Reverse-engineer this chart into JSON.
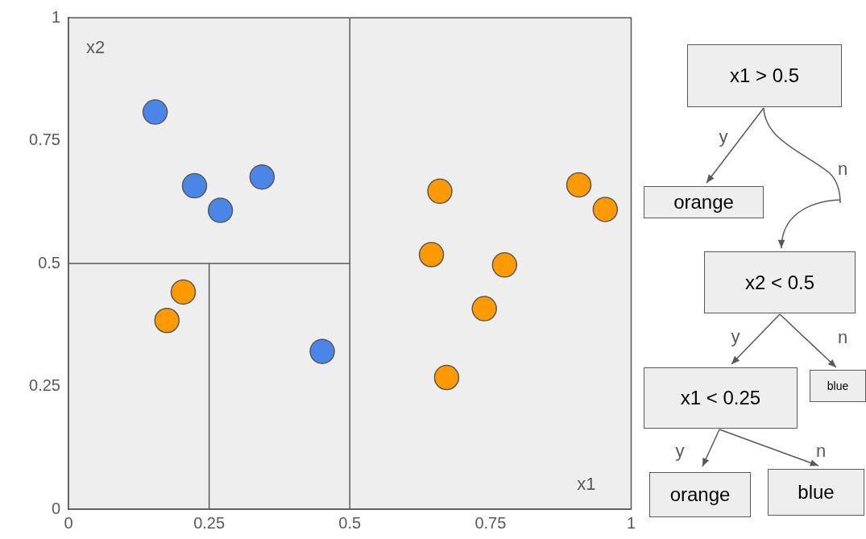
{
  "chart_data": {
    "type": "scatter",
    "xlabel": "x1",
    "ylabel": "x2",
    "xlim": [
      0,
      1
    ],
    "xticks": [
      0,
      0.25,
      0.5,
      0.75,
      1
    ],
    "ylim": [
      0,
      1
    ],
    "yticks": [
      0,
      0.25,
      0.5,
      0.75,
      1
    ],
    "grid": false,
    "legend": false,
    "marker": "circle",
    "series": [
      {
        "color": "#4a86e8",
        "x": [
          0.154,
          0.224,
          0.27,
          0.344,
          0.451
        ],
        "values": [
          0.808,
          0.658,
          0.608,
          0.676,
          0.321
        ]
      },
      {
        "color": "#ff9900",
        "x": [
          0.204,
          0.175,
          0.66,
          0.645,
          0.775,
          0.739,
          0.672,
          0.907,
          0.954
        ],
        "values": [
          0.442,
          0.384,
          0.647,
          0.518,
          0.497,
          0.408,
          0.268,
          0.66,
          0.61
        ]
      },
      {
        "type": "line",
        "marker": "none",
        "color": "#595959",
        "x": [
          0.5,
          0.5
        ],
        "values": [
          0,
          1
        ]
      },
      {
        "type": "line",
        "marker": "none",
        "color": "#595959",
        "x": [
          0,
          0.5
        ],
        "values": [
          0.5,
          0.5
        ]
      },
      {
        "type": "line",
        "marker": "none",
        "color": "#595959",
        "x": [
          0.25,
          0.25
        ],
        "values": [
          0,
          0.5
        ]
      }
    ],
    "annotations": [
      "x1 > 0.5",
      "y",
      "n",
      "orange",
      "x2 < 0.5",
      "y",
      "n",
      "x1 < 0.25",
      "blue",
      "y",
      "n",
      "orange",
      "blue"
    ]
  }
}
